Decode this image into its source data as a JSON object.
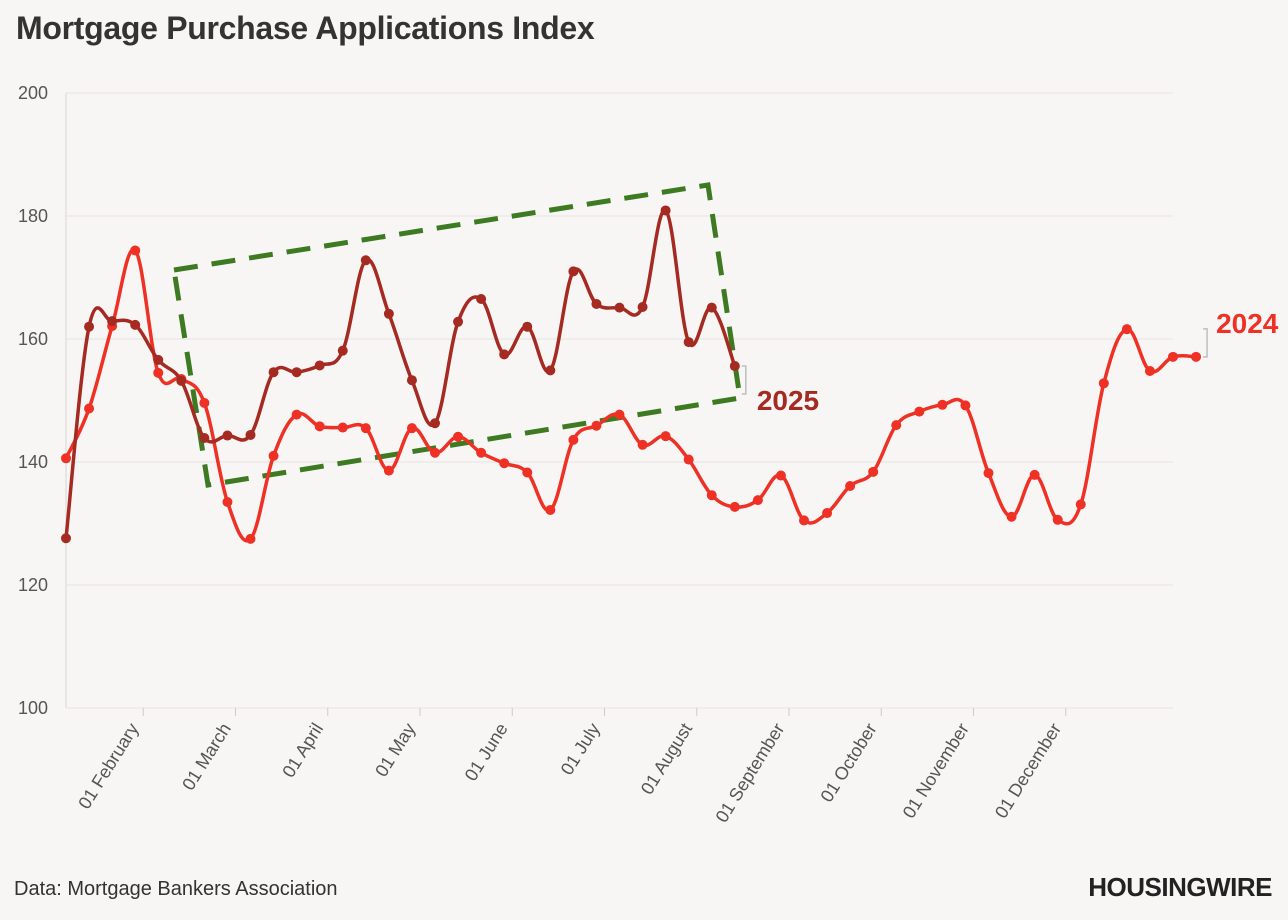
{
  "title": "Mortgage Purchase Applications Index",
  "source": "Data: Mortgage Bankers Association",
  "brand": "HOUSINGWIRE",
  "chart_data": {
    "type": "line",
    "title": "Mortgage Purchase Applications Index",
    "ylim": [
      100,
      200
    ],
    "yticks": [
      100,
      120,
      140,
      160,
      180,
      200
    ],
    "xlim": [
      0,
      48
    ],
    "x_tick_labels": [
      {
        "label": "01 February",
        "x": 3.35
      },
      {
        "label": "01 March",
        "x": 7.35
      },
      {
        "label": "01 April",
        "x": 11.35
      },
      {
        "label": "01 May",
        "x": 15.35
      },
      {
        "label": "01 June",
        "x": 19.35
      },
      {
        "label": "01 July",
        "x": 23.35
      },
      {
        "label": "01 August",
        "x": 27.35
      },
      {
        "label": "01 September",
        "x": 31.35
      },
      {
        "label": "01 October",
        "x": 35.35
      },
      {
        "label": "01 November",
        "x": 39.35
      },
      {
        "label": "01 December",
        "x": 43.35
      }
    ],
    "grid": true,
    "series": [
      {
        "name": "2024",
        "color": "#ee3124",
        "values": [
          140.6,
          148.7,
          162.1,
          174.4,
          154.5,
          153.5,
          149.6,
          133.5,
          127.5,
          141.0,
          147.7,
          145.8,
          145.6,
          145.5,
          138.6,
          145.5,
          141.5,
          144.1,
          141.5,
          139.8,
          138.3,
          132.2,
          143.6,
          145.9,
          147.7,
          142.8,
          144.2,
          140.4,
          134.6,
          132.7,
          133.8,
          137.8,
          130.5,
          131.7,
          136.1,
          138.4,
          146.0,
          148.2,
          149.3,
          149.2,
          138.2,
          131.1,
          137.9,
          130.6,
          133.1,
          152.8,
          161.6,
          154.8,
          157.1,
          157.1
        ]
      },
      {
        "name": "2025",
        "color": "#a52a22",
        "values": [
          127.6,
          162.0,
          162.9,
          162.3,
          156.6,
          153.2,
          143.9,
          144.3,
          144.4,
          154.6,
          154.6,
          155.7,
          158.1,
          172.8,
          164.1,
          153.3,
          146.3,
          162.8,
          166.5,
          157.5,
          162.0,
          154.9,
          171.0,
          165.7,
          165.1,
          165.2,
          180.9,
          159.5,
          165.1,
          155.6
        ]
      }
    ],
    "annotations": [
      {
        "text": "2025",
        "series": "2025"
      },
      {
        "text": "2024",
        "series": "2024"
      }
    ]
  }
}
